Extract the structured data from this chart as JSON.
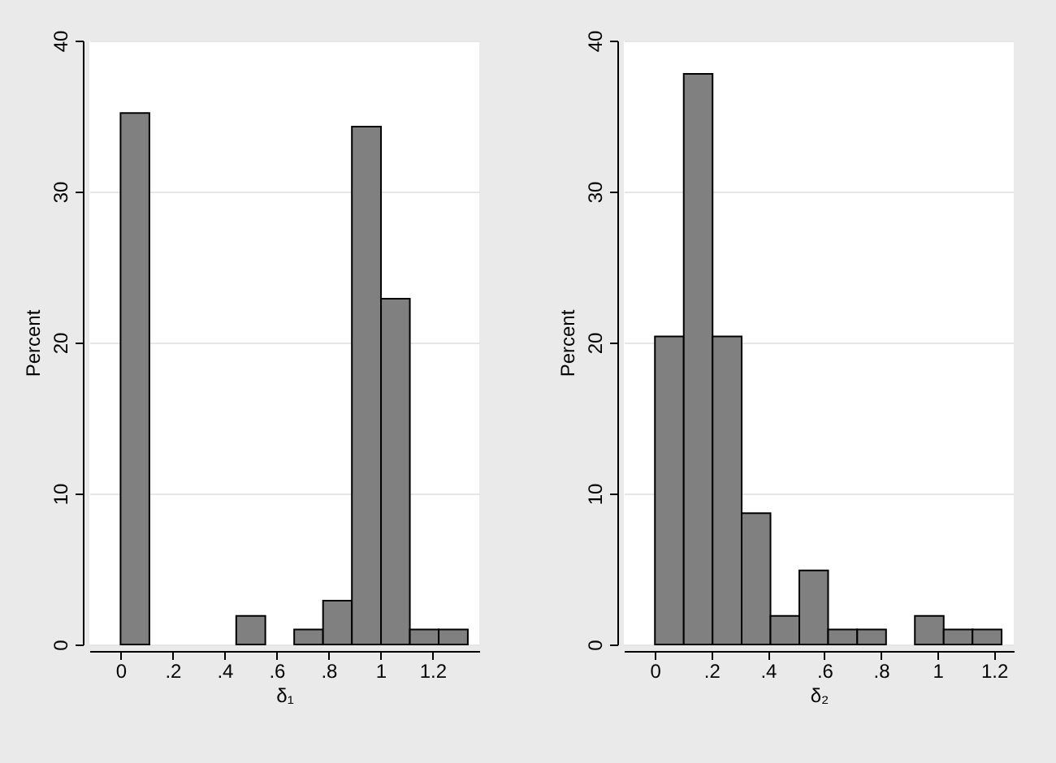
{
  "chart_data": [
    {
      "type": "histogram",
      "xlabel": "δ₁",
      "ylabel": "Percent",
      "color": "#808080",
      "bins": [
        0,
        0.111,
        0.223,
        0.334,
        0.445,
        0.557,
        0.668,
        0.779,
        0.89,
        1.002,
        1.113,
        1.224,
        1.336
      ],
      "values": [
        35.2,
        0,
        0,
        0,
        1.9,
        0,
        1.0,
        2.9,
        34.3,
        22.9,
        1.0,
        1.0
      ],
      "xlim": [
        -0.12,
        1.38
      ],
      "ylim": [
        0,
        40
      ],
      "xticks": [
        0,
        {
          "value": 0.2,
          "label": ".2"
        },
        {
          "value": 0.4,
          "label": ".4"
        },
        {
          "value": 0.6,
          "label": ".6"
        },
        {
          "value": 0.8,
          "label": ".8"
        },
        1,
        1.2
      ],
      "yticks": [
        0,
        10,
        20,
        30,
        40
      ],
      "grid": "y"
    },
    {
      "type": "histogram",
      "xlabel": "δ₂",
      "ylabel": "Percent",
      "color": "#808080",
      "bins": [
        0,
        0.102,
        0.204,
        0.307,
        0.409,
        0.511,
        0.613,
        0.716,
        0.818,
        0.92,
        1.022,
        1.124,
        1.227
      ],
      "values": [
        20.4,
        37.8,
        20.4,
        8.7,
        1.9,
        4.9,
        1.0,
        1.0,
        0,
        1.9,
        1.0,
        1.0
      ],
      "xlim": [
        -0.11,
        1.27
      ],
      "ylim": [
        0,
        40
      ],
      "xticks": [
        0,
        {
          "value": 0.2,
          "label": ".2"
        },
        {
          "value": 0.4,
          "label": ".4"
        },
        {
          "value": 0.6,
          "label": ".6"
        },
        {
          "value": 0.8,
          "label": ".8"
        },
        1,
        1.2
      ],
      "yticks": [
        0,
        10,
        20,
        30,
        40
      ],
      "grid": "y"
    }
  ]
}
